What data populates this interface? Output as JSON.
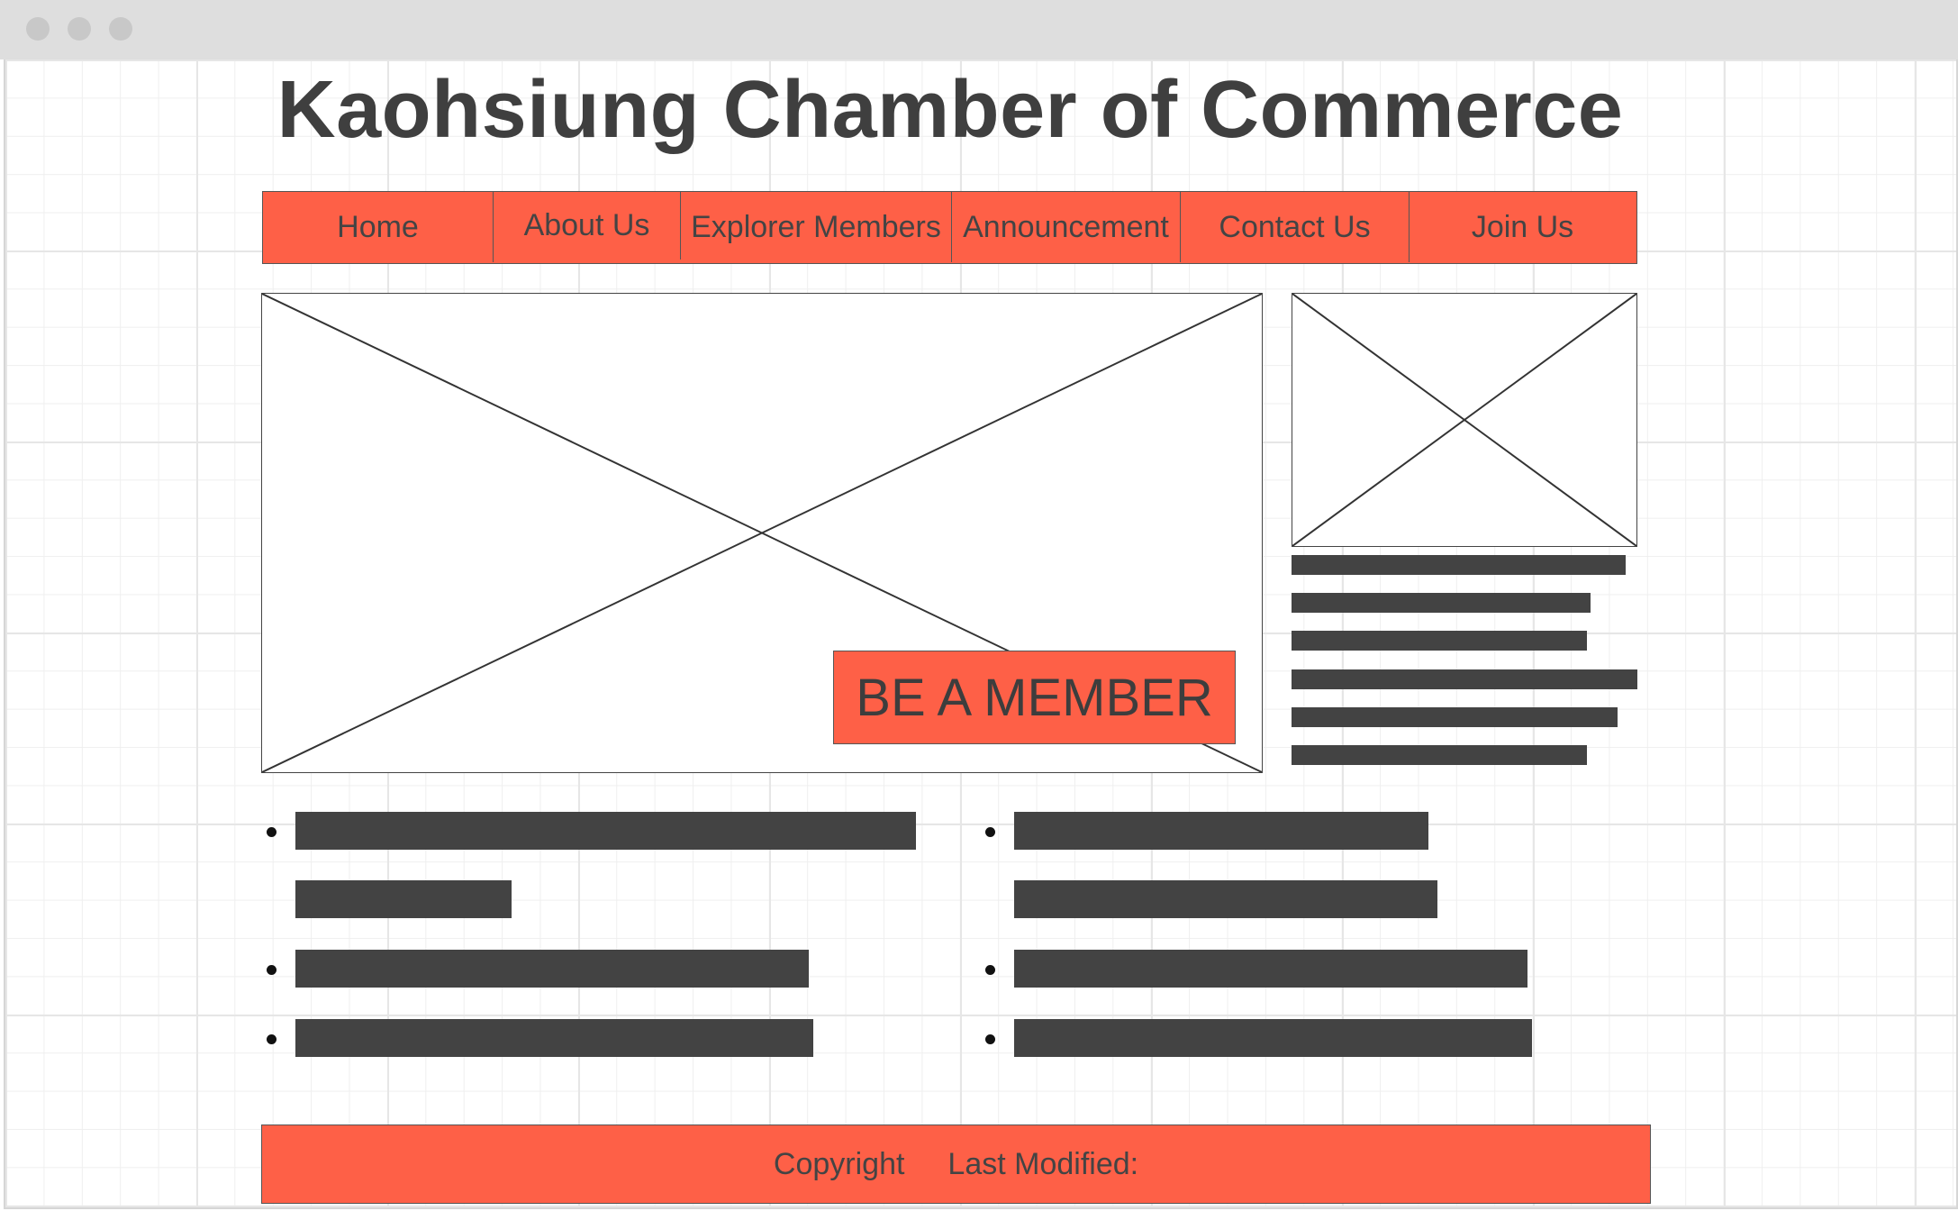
{
  "site": {
    "title": "Kaohsiung Chamber of Commerce"
  },
  "nav": {
    "items": [
      {
        "label": "Home"
      },
      {
        "label": "About Us"
      },
      {
        "label": "Explorer Members"
      },
      {
        "label": "Announcement"
      },
      {
        "label": "Contact Us"
      },
      {
        "label": "Join Us"
      }
    ]
  },
  "hero": {
    "cta_label": "BE A MEMBER"
  },
  "footer": {
    "copyright": "Copyright",
    "last_modified": "Last Modified:"
  },
  "colors": {
    "accent": "#fe6047",
    "text": "#3f3f3f",
    "bar": "#434343"
  },
  "icons": [
    "image-placeholder-icon",
    "bullet-icon"
  ]
}
